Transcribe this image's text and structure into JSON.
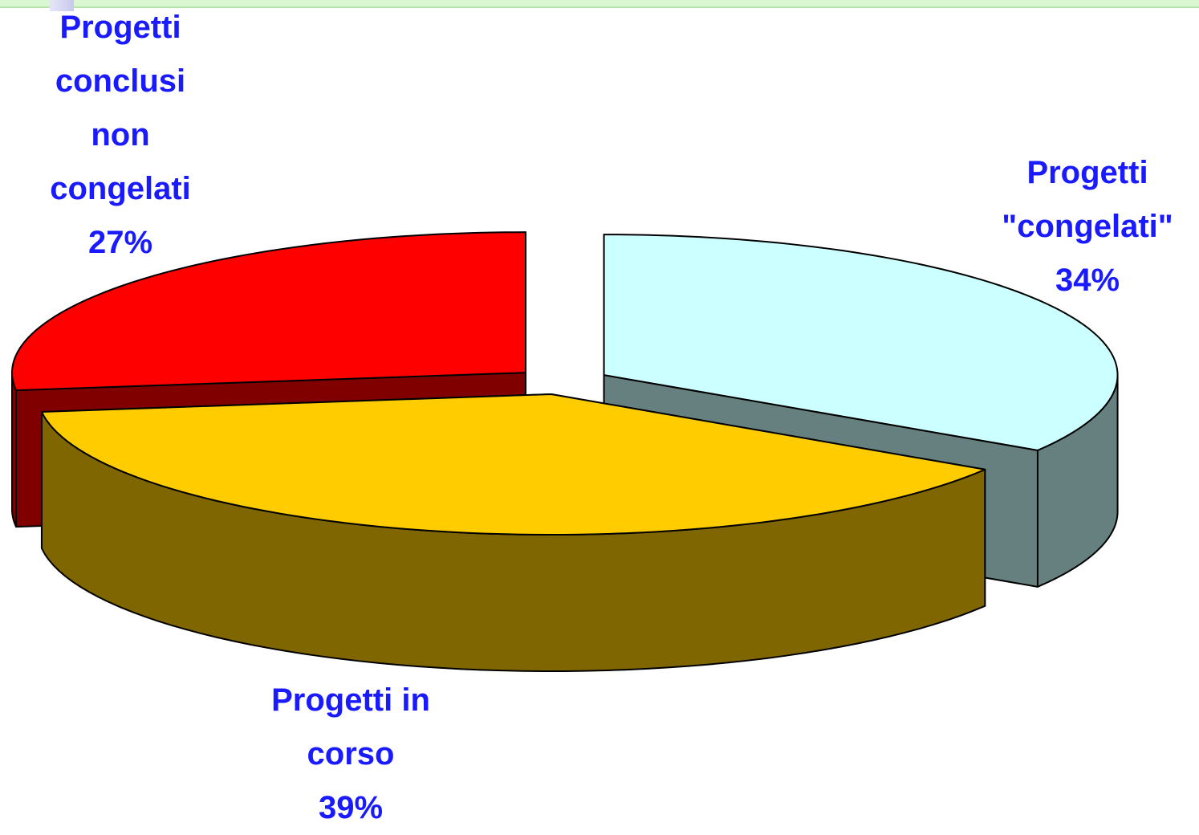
{
  "chart_data": {
    "type": "pie3d",
    "categories": [
      "Progetti \"congelati\"",
      "Progetti in corso",
      "Progetti conclusi non congelati"
    ],
    "values": [
      34,
      39,
      27
    ],
    "value_labels": [
      "34%",
      "39%",
      "27%"
    ],
    "colors": [
      "#ccffff",
      "#ffcc00",
      "#ff0000"
    ]
  }
}
